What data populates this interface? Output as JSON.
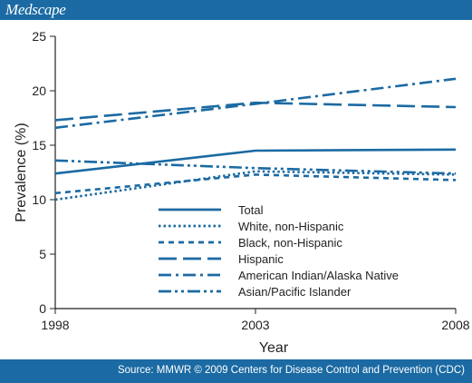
{
  "header": {
    "brand": "Medscape"
  },
  "footer": {
    "source": "Source: MMWR © 2009 Centers for Disease Control and Prevention (CDC)"
  },
  "colors": {
    "brand_bar": "#1b6aa3",
    "series": "#1b6aa3",
    "axis": "#222222"
  },
  "chart_data": {
    "type": "line",
    "title": "",
    "xlabel": "Year",
    "ylabel": "Prevalence (%)",
    "x_ticks": [
      "1998",
      "2003",
      "2008"
    ],
    "x_tick_footnote": "§",
    "y_ticks": [
      "0",
      "5",
      "10",
      "15",
      "20",
      "25"
    ],
    "ylim": [
      0,
      25
    ],
    "grid": false,
    "legend_position": "bottom-center",
    "x": [
      1998,
      2003,
      2008
    ],
    "series": [
      {
        "name": "Total",
        "style": "solid",
        "values": [
          12.4,
          14.5,
          14.6
        ]
      },
      {
        "name": "White, non-Hispanic",
        "style": "dotted",
        "values": [
          10.0,
          12.6,
          12.3
        ]
      },
      {
        "name": "Black, non-Hispanic",
        "style": "dashed",
        "values": [
          10.6,
          12.3,
          11.8
        ]
      },
      {
        "name": "Hispanic",
        "style": "long-dash",
        "values": [
          17.3,
          18.9,
          18.5
        ]
      },
      {
        "name": "American Indian/Alaska Native",
        "style": "dash-dot",
        "values": [
          16.6,
          18.8,
          21.1
        ]
      },
      {
        "name": "Asian/Pacific Islander",
        "style": "dash-dot-dot",
        "values": [
          13.6,
          12.9,
          12.4
        ]
      }
    ]
  }
}
